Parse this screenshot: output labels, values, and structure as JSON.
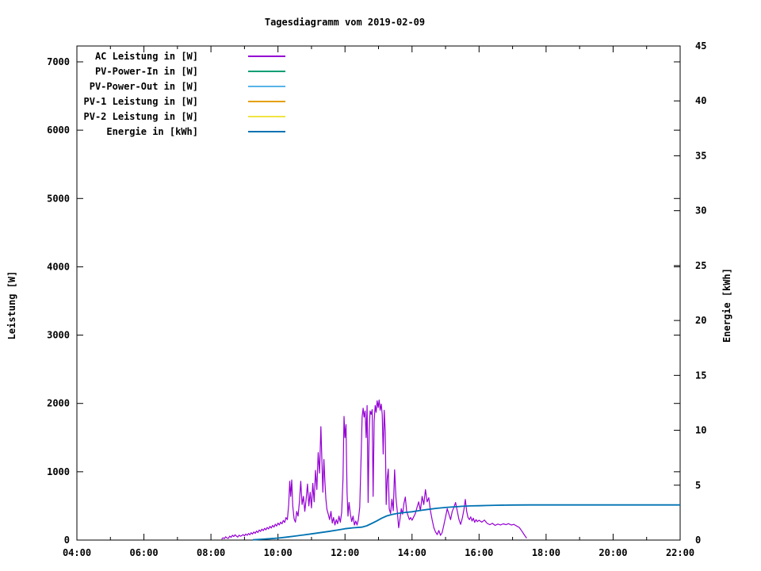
{
  "title": "Tagesdiagramm vom 2019-02-09",
  "chart_data": {
    "type": "line",
    "title": "Tagesdiagramm vom 2019-02-09",
    "grid": false,
    "legend_position": "top-left-inside",
    "x_axis": {
      "range_hours": [
        4,
        22
      ],
      "major_tick_hours": [
        4,
        6,
        8,
        10,
        12,
        14,
        16,
        18,
        20,
        22
      ],
      "major_tick_labels": [
        "04:00",
        "06:00",
        "08:00",
        "10:00",
        "12:00",
        "14:00",
        "16:00",
        "18:00",
        "20:00",
        "22:00"
      ],
      "minor_tick_step_hours": 1
    },
    "y_left_axis": {
      "label": "Leistung [W]",
      "range": [
        0,
        7232
      ],
      "tick_values": [
        0,
        1000,
        2000,
        3000,
        4000,
        5000,
        6000,
        7000
      ]
    },
    "y_right_axis": {
      "label": "Energie [kWh]",
      "range": [
        0,
        45
      ],
      "tick_values": [
        0,
        5,
        10,
        15,
        20,
        25,
        30,
        35,
        40,
        45
      ]
    },
    "series": [
      {
        "name": "AC Leistung in [W]",
        "color": "#9400D3",
        "axis": "left",
        "points": [
          [
            8.32,
            12
          ],
          [
            8.36,
            34
          ],
          [
            8.4,
            22
          ],
          [
            8.44,
            48
          ],
          [
            8.48,
            30
          ],
          [
            8.52,
            26
          ],
          [
            8.56,
            58
          ],
          [
            8.6,
            40
          ],
          [
            8.64,
            70
          ],
          [
            8.68,
            52
          ],
          [
            8.72,
            78
          ],
          [
            8.76,
            58
          ],
          [
            8.8,
            44
          ],
          [
            8.84,
            72
          ],
          [
            8.88,
            56
          ],
          [
            8.92,
            66
          ],
          [
            8.96,
            80
          ],
          [
            9.0,
            62
          ],
          [
            9.04,
            88
          ],
          [
            9.08,
            70
          ],
          [
            9.12,
            96
          ],
          [
            9.16,
            78
          ],
          [
            9.2,
            108
          ],
          [
            9.24,
            88
          ],
          [
            9.28,
            118
          ],
          [
            9.32,
            98
          ],
          [
            9.36,
            132
          ],
          [
            9.4,
            110
          ],
          [
            9.44,
            148
          ],
          [
            9.48,
            126
          ],
          [
            9.52,
            160
          ],
          [
            9.56,
            138
          ],
          [
            9.6,
            172
          ],
          [
            9.64,
            150
          ],
          [
            9.68,
            185
          ],
          [
            9.72,
            162
          ],
          [
            9.76,
            200
          ],
          [
            9.8,
            176
          ],
          [
            9.84,
            215
          ],
          [
            9.88,
            190
          ],
          [
            9.92,
            232
          ],
          [
            9.96,
            205
          ],
          [
            10.0,
            248
          ],
          [
            10.04,
            222
          ],
          [
            10.08,
            262
          ],
          [
            10.12,
            238
          ],
          [
            10.16,
            288
          ],
          [
            10.2,
            258
          ],
          [
            10.24,
            330
          ],
          [
            10.28,
            300
          ],
          [
            10.32,
            520
          ],
          [
            10.35,
            860
          ],
          [
            10.38,
            640
          ],
          [
            10.41,
            880
          ],
          [
            10.44,
            500
          ],
          [
            10.48,
            310
          ],
          [
            10.52,
            262
          ],
          [
            10.56,
            420
          ],
          [
            10.6,
            350
          ],
          [
            10.64,
            560
          ],
          [
            10.68,
            860
          ],
          [
            10.72,
            520
          ],
          [
            10.76,
            640
          ],
          [
            10.8,
            420
          ],
          [
            10.84,
            600
          ],
          [
            10.88,
            820
          ],
          [
            10.92,
            500
          ],
          [
            10.96,
            700
          ],
          [
            11.0,
            470
          ],
          [
            11.04,
            830
          ],
          [
            11.08,
            560
          ],
          [
            11.12,
            1020
          ],
          [
            11.16,
            740
          ],
          [
            11.2,
            1280
          ],
          [
            11.24,
            980
          ],
          [
            11.28,
            1660
          ],
          [
            11.31,
            1150
          ],
          [
            11.34,
            700
          ],
          [
            11.37,
            1180
          ],
          [
            11.4,
            850
          ],
          [
            11.43,
            600
          ],
          [
            11.46,
            450
          ],
          [
            11.5,
            380
          ],
          [
            11.54,
            300
          ],
          [
            11.58,
            420
          ],
          [
            11.62,
            250
          ],
          [
            11.66,
            330
          ],
          [
            11.7,
            220
          ],
          [
            11.74,
            300
          ],
          [
            11.78,
            240
          ],
          [
            11.82,
            350
          ],
          [
            11.86,
            260
          ],
          [
            11.9,
            400
          ],
          [
            11.94,
            900
          ],
          [
            11.97,
            1810
          ],
          [
            12.0,
            1500
          ],
          [
            12.03,
            1690
          ],
          [
            12.06,
            700
          ],
          [
            12.09,
            350
          ],
          [
            12.12,
            550
          ],
          [
            12.16,
            380
          ],
          [
            12.2,
            270
          ],
          [
            12.24,
            350
          ],
          [
            12.28,
            220
          ],
          [
            12.32,
            280
          ],
          [
            12.36,
            220
          ],
          [
            12.4,
            300
          ],
          [
            12.44,
            480
          ],
          [
            12.48,
            1200
          ],
          [
            12.51,
            1800
          ],
          [
            12.54,
            1930
          ],
          [
            12.57,
            1800
          ],
          [
            12.6,
            1890
          ],
          [
            12.63,
            1500
          ],
          [
            12.66,
            1970
          ],
          [
            12.69,
            550
          ],
          [
            12.72,
            1600
          ],
          [
            12.75,
            1890
          ],
          [
            12.78,
            1840
          ],
          [
            12.81,
            1910
          ],
          [
            12.84,
            640
          ],
          [
            12.87,
            1740
          ],
          [
            12.9,
            1970
          ],
          [
            12.93,
            1870
          ],
          [
            12.96,
            2040
          ],
          [
            12.99,
            1940
          ],
          [
            13.02,
            2050
          ],
          [
            13.05,
            1900
          ],
          [
            13.08,
            1990
          ],
          [
            13.11,
            1840
          ],
          [
            13.14,
            1260
          ],
          [
            13.17,
            1900
          ],
          [
            13.2,
            1580
          ],
          [
            13.23,
            520
          ],
          [
            13.26,
            900
          ],
          [
            13.29,
            1040
          ],
          [
            13.32,
            460
          ],
          [
            13.36,
            390
          ],
          [
            13.4,
            600
          ],
          [
            13.44,
            430
          ],
          [
            13.48,
            1030
          ],
          [
            13.52,
            620
          ],
          [
            13.56,
            420
          ],
          [
            13.6,
            180
          ],
          [
            13.64,
            310
          ],
          [
            13.68,
            460
          ],
          [
            13.72,
            380
          ],
          [
            13.76,
            540
          ],
          [
            13.8,
            630
          ],
          [
            13.84,
            420
          ],
          [
            13.88,
            360
          ],
          [
            13.92,
            300
          ],
          [
            13.96,
            330
          ],
          [
            14.0,
            290
          ],
          [
            14.05,
            340
          ],
          [
            14.1,
            390
          ],
          [
            14.15,
            480
          ],
          [
            14.2,
            560
          ],
          [
            14.25,
            430
          ],
          [
            14.3,
            640
          ],
          [
            14.35,
            520
          ],
          [
            14.4,
            740
          ],
          [
            14.45,
            560
          ],
          [
            14.5,
            620
          ],
          [
            14.55,
            430
          ],
          [
            14.6,
            300
          ],
          [
            14.65,
            180
          ],
          [
            14.7,
            120
          ],
          [
            14.75,
            80
          ],
          [
            14.8,
            140
          ],
          [
            14.85,
            70
          ],
          [
            14.9,
            110
          ],
          [
            14.95,
            220
          ],
          [
            15.0,
            340
          ],
          [
            15.05,
            460
          ],
          [
            15.1,
            380
          ],
          [
            15.15,
            300
          ],
          [
            15.2,
            420
          ],
          [
            15.25,
            480
          ],
          [
            15.3,
            550
          ],
          [
            15.35,
            420
          ],
          [
            15.4,
            300
          ],
          [
            15.45,
            230
          ],
          [
            15.5,
            320
          ],
          [
            15.55,
            450
          ],
          [
            15.59,
            595
          ],
          [
            15.63,
            420
          ],
          [
            15.67,
            330
          ],
          [
            15.71,
            300
          ],
          [
            15.75,
            340
          ],
          [
            15.79,
            280
          ],
          [
            15.83,
            320
          ],
          [
            15.87,
            260
          ],
          [
            15.91,
            300
          ],
          [
            15.95,
            270
          ],
          [
            16.0,
            290
          ],
          [
            16.08,
            262
          ],
          [
            16.16,
            292
          ],
          [
            16.24,
            245
          ],
          [
            16.32,
            225
          ],
          [
            16.4,
            245
          ],
          [
            16.48,
            215
          ],
          [
            16.56,
            235
          ],
          [
            16.64,
            222
          ],
          [
            16.72,
            238
          ],
          [
            16.8,
            225
          ],
          [
            16.88,
            240
          ],
          [
            16.96,
            220
          ],
          [
            17.04,
            230
          ],
          [
            17.12,
            205
          ],
          [
            17.2,
            185
          ],
          [
            17.28,
            130
          ],
          [
            17.36,
            70
          ],
          [
            17.42,
            28
          ]
        ]
      },
      {
        "name": "PV-Power-In in [W]",
        "color": "#009E73",
        "axis": "left",
        "points": []
      },
      {
        "name": "PV-Power-Out in [W]",
        "color": "#56B4E9",
        "axis": "left",
        "points": []
      },
      {
        "name": "PV-1 Leistung in [W]",
        "color": "#E69F00",
        "axis": "left",
        "points": []
      },
      {
        "name": "PV-2 Leistung in [W]",
        "color": "#F0E442",
        "axis": "left",
        "points": []
      },
      {
        "name": "Energie in [kWh]",
        "color": "#0072B2",
        "axis": "right",
        "points": [
          [
            9.25,
            0.02
          ],
          [
            9.5,
            0.07
          ],
          [
            9.75,
            0.12
          ],
          [
            10.0,
            0.18
          ],
          [
            10.25,
            0.27
          ],
          [
            10.5,
            0.36
          ],
          [
            10.75,
            0.46
          ],
          [
            11.0,
            0.56
          ],
          [
            11.25,
            0.67
          ],
          [
            11.5,
            0.78
          ],
          [
            11.75,
            0.9
          ],
          [
            12.0,
            1.03
          ],
          [
            12.25,
            1.12
          ],
          [
            12.5,
            1.18
          ],
          [
            12.65,
            1.3
          ],
          [
            12.8,
            1.52
          ],
          [
            12.95,
            1.75
          ],
          [
            13.1,
            2.0
          ],
          [
            13.25,
            2.2
          ],
          [
            13.4,
            2.33
          ],
          [
            13.55,
            2.42
          ],
          [
            13.75,
            2.5
          ],
          [
            14.0,
            2.58
          ],
          [
            14.25,
            2.7
          ],
          [
            14.5,
            2.8
          ],
          [
            14.75,
            2.9
          ],
          [
            15.0,
            2.97
          ],
          [
            15.25,
            3.03
          ],
          [
            15.5,
            3.08
          ],
          [
            15.75,
            3.11
          ],
          [
            16.0,
            3.13
          ],
          [
            16.25,
            3.15
          ],
          [
            16.5,
            3.17
          ],
          [
            17.0,
            3.19
          ],
          [
            17.5,
            3.2
          ],
          [
            18.0,
            3.2
          ],
          [
            19.0,
            3.2
          ],
          [
            20.0,
            3.2
          ],
          [
            21.0,
            3.2
          ],
          [
            22.0,
            3.2
          ]
        ]
      }
    ]
  }
}
